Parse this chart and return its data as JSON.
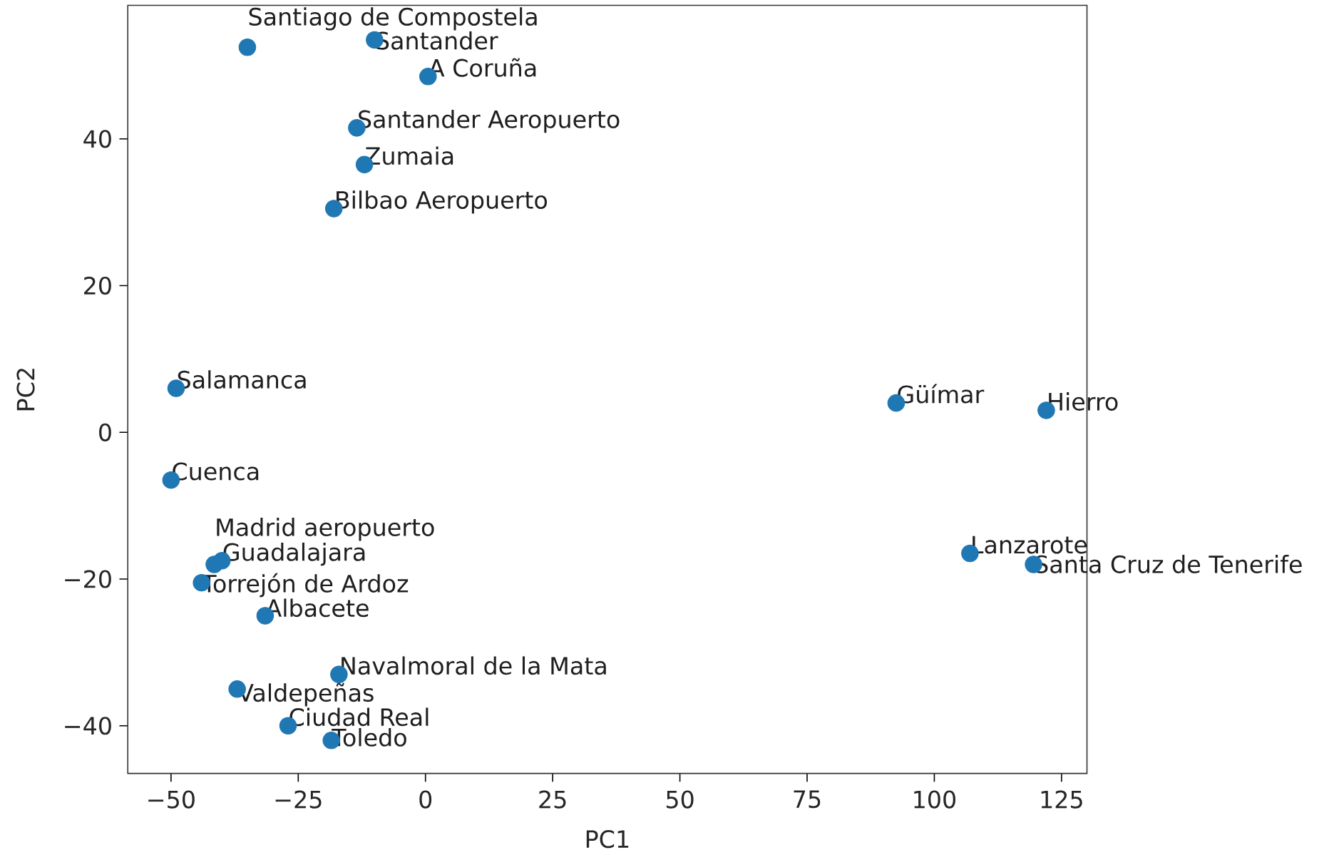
{
  "chart_data": {
    "type": "scatter",
    "xlabel": "PC1",
    "ylabel": "PC2",
    "x": [
      -35,
      -10,
      0.5,
      -13.5,
      -12,
      -18,
      -49,
      -50,
      -40,
      -41.5,
      -44,
      -31.5,
      -17,
      -37,
      -27,
      -18.5,
      92.5,
      122,
      107,
      119.5
    ],
    "series": [
      {
        "color": "#1f77b4",
        "values": [
          52.5,
          53.5,
          48.5,
          41.5,
          36.5,
          30.5,
          6,
          -6.5,
          -17.5,
          -18,
          -20.5,
          -25,
          -33,
          -35,
          -40,
          -42,
          4,
          3,
          -16.5,
          -18
        ]
      }
    ],
    "marker": "circle",
    "xlim": [
      -58.5,
      130
    ],
    "ylim": [
      -46.5,
      58.2
    ],
    "xticks": [
      {
        "value": -50,
        "label": "−50"
      },
      {
        "value": -25,
        "label": "−25"
      },
      0,
      25,
      50,
      75,
      100,
      125
    ],
    "yticks": [
      {
        "value": -40,
        "label": "−40"
      },
      {
        "value": -20,
        "label": "−20"
      },
      0,
      20,
      40
    ],
    "annotations": [
      {
        "text": "Santiago de Compostela",
        "x": -35,
        "y": 52.5
      },
      {
        "text": "Santander",
        "x": -10,
        "y": 53.5
      },
      {
        "text": "A Coruña",
        "x": 0.5,
        "y": 48.5
      },
      {
        "text": "Santander Aeropuerto",
        "x": -13.5,
        "y": 41.5
      },
      {
        "text": "Zumaia",
        "x": -12,
        "y": 36.5
      },
      {
        "text": "Bilbao Aeropuerto",
        "x": -18,
        "y": 30.5
      },
      {
        "text": "Salamanca",
        "x": -49,
        "y": 6
      },
      {
        "text": "Cuenca",
        "x": -50,
        "y": -6.5
      },
      {
        "text": "Guadalajara",
        "x": -40,
        "y": -17.5
      },
      {
        "text": "Madrid aeropuerto",
        "x": -41.5,
        "y": -18
      },
      {
        "text": "Torrejón de Ardoz",
        "x": -44,
        "y": -20.5
      },
      {
        "text": "Albacete",
        "x": -31.5,
        "y": -25
      },
      {
        "text": "Navalmoral de la Mata",
        "x": -17,
        "y": -33
      },
      {
        "text": "Valdepeñas",
        "x": -37,
        "y": -35
      },
      {
        "text": "Ciudad Real",
        "x": -27,
        "y": -40
      },
      {
        "text": "Toledo",
        "x": -18.5,
        "y": -42
      },
      {
        "text": "Güímar",
        "x": 92.5,
        "y": 4
      },
      {
        "text": "Hierro",
        "x": 122,
        "y": 3
      },
      {
        "text": "Lanzarote",
        "x": 107,
        "y": -16.5
      },
      {
        "text": "Santa Cruz de Tenerife",
        "x": 119.5,
        "y": -18
      }
    ]
  }
}
